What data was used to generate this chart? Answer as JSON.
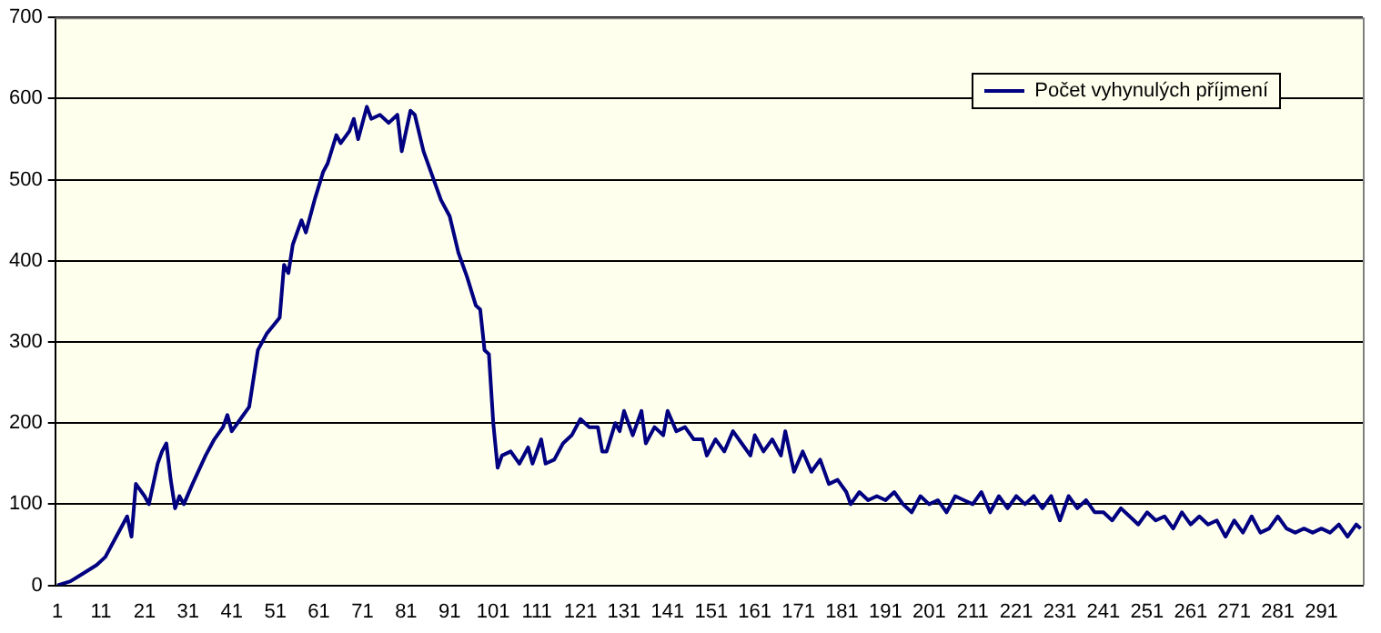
{
  "chart_data": {
    "type": "line",
    "legend": "top right",
    "grid": "y",
    "marker": "none",
    "line_style": "solid",
    "xlim": [
      0.5,
      300.5
    ],
    "xticks": [
      1,
      11,
      21,
      31,
      41,
      51,
      61,
      71,
      81,
      91,
      101,
      111,
      121,
      131,
      141,
      151,
      161,
      171,
      181,
      191,
      201,
      211,
      221,
      231,
      241,
      251,
      261,
      271,
      281,
      291
    ],
    "ylim": [
      0,
      700
    ],
    "yticks": [
      0,
      100,
      200,
      300,
      400,
      500,
      600,
      700
    ],
    "series": [
      {
        "name": "Počet vyhynulých příjmení",
        "color": "#000080",
        "x": [
          1,
          4,
          7,
          10,
          12,
          14,
          16,
          17,
          18,
          19,
          21,
          22,
          24,
          25,
          26,
          27,
          28,
          29,
          30,
          32,
          35,
          37,
          39,
          40,
          41,
          43,
          45,
          47,
          49,
          52,
          53,
          54,
          55,
          57,
          58,
          60,
          62,
          63,
          65,
          66,
          68,
          69,
          70,
          72,
          73,
          75,
          77,
          79,
          80,
          82,
          83,
          85,
          87,
          89,
          91,
          93,
          95,
          97,
          98,
          99,
          100,
          101,
          102,
          103,
          105,
          107,
          109,
          110,
          112,
          113,
          115,
          117,
          119,
          121,
          123,
          125,
          126,
          127,
          129,
          130,
          131,
          133,
          135,
          136,
          138,
          140,
          141,
          143,
          145,
          147,
          149,
          150,
          152,
          154,
          156,
          158,
          160,
          161,
          163,
          165,
          167,
          168,
          170,
          172,
          174,
          176,
          178,
          180,
          182,
          183,
          185,
          187,
          189,
          191,
          193,
          195,
          197,
          199,
          201,
          203,
          205,
          207,
          209,
          211,
          213,
          215,
          217,
          219,
          221,
          223,
          225,
          227,
          229,
          231,
          233,
          235,
          237,
          239,
          241,
          243,
          245,
          247,
          249,
          251,
          253,
          255,
          257,
          259,
          261,
          263,
          265,
          267,
          269,
          271,
          273,
          275,
          277,
          279,
          281,
          283,
          285,
          287,
          289,
          291,
          293,
          295,
          297,
          299,
          300
        ],
        "values": [
          0,
          5,
          15,
          25,
          35,
          55,
          75,
          85,
          60,
          125,
          110,
          100,
          150,
          165,
          175,
          130,
          95,
          110,
          100,
          125,
          160,
          180,
          195,
          210,
          190,
          205,
          220,
          290,
          310,
          330,
          395,
          385,
          420,
          450,
          435,
          475,
          510,
          520,
          555,
          545,
          560,
          575,
          550,
          590,
          575,
          580,
          570,
          580,
          535,
          585,
          580,
          535,
          505,
          475,
          455,
          410,
          380,
          345,
          340,
          290,
          285,
          200,
          145,
          160,
          165,
          150,
          170,
          150,
          180,
          150,
          155,
          175,
          185,
          205,
          195,
          195,
          165,
          165,
          200,
          190,
          215,
          185,
          215,
          175,
          195,
          185,
          215,
          190,
          195,
          180,
          180,
          160,
          180,
          165,
          190,
          175,
          160,
          185,
          165,
          180,
          160,
          190,
          140,
          165,
          140,
          155,
          125,
          130,
          115,
          100,
          115,
          105,
          110,
          105,
          115,
          100,
          90,
          110,
          100,
          105,
          90,
          110,
          105,
          100,
          115,
          90,
          110,
          95,
          110,
          100,
          110,
          95,
          110,
          80,
          110,
          95,
          105,
          90,
          90,
          80,
          95,
          85,
          75,
          90,
          80,
          85,
          70,
          90,
          75,
          85,
          75,
          80,
          60,
          80,
          65,
          85,
          65,
          70,
          85,
          70,
          65,
          70,
          65,
          70,
          65,
          75,
          60,
          75,
          70
        ]
      }
    ]
  }
}
